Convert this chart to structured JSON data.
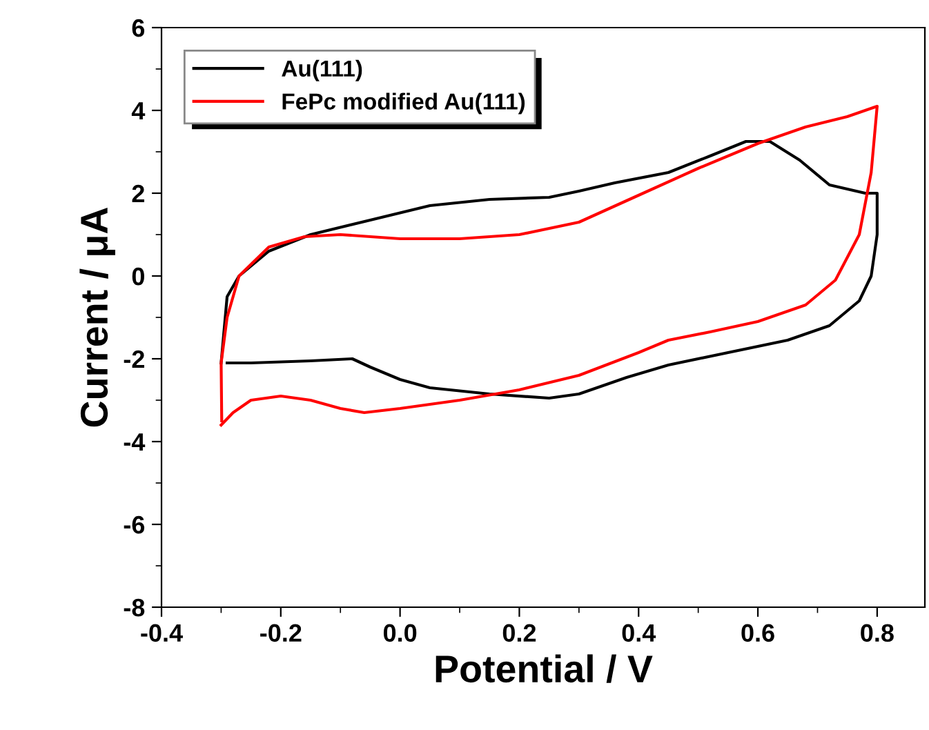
{
  "chart_data": {
    "type": "line",
    "xlabel": "Potential / V",
    "ylabel": "Current / μA",
    "xlim": [
      -0.4,
      0.88
    ],
    "ylim": [
      -8,
      6
    ],
    "xticks": [
      -0.4,
      -0.2,
      {
        "value": 0,
        "label": "0.0"
      },
      0.2,
      0.4,
      0.6,
      0.8
    ],
    "yticks": [
      -8,
      -6,
      -4,
      -2,
      0,
      2,
      4,
      6
    ],
    "grid": false,
    "legend": "top left",
    "marker": "none",
    "line_style": "solid",
    "series": [
      {
        "name": "Au(111)",
        "color": "#000000",
        "x": [
          -0.3,
          -0.29,
          -0.27,
          -0.22,
          -0.15,
          -0.05,
          0.05,
          0.15,
          0.25,
          0.3,
          0.36,
          0.45,
          0.52,
          0.58,
          0.62,
          0.67,
          0.72,
          0.78,
          0.8,
          0.8,
          0.79,
          0.77,
          0.72,
          0.65,
          0.55,
          0.45,
          0.38,
          0.3,
          0.25,
          0.15,
          0.05,
          0.0,
          -0.05,
          -0.08,
          -0.15,
          -0.25,
          -0.29
        ],
        "values": [
          -2.1,
          -0.5,
          0.0,
          0.6,
          1.0,
          1.35,
          1.7,
          1.85,
          1.9,
          2.05,
          2.25,
          2.5,
          2.9,
          3.25,
          3.25,
          2.8,
          2.2,
          2.0,
          2.0,
          1.0,
          0.0,
          -0.6,
          -1.2,
          -1.55,
          -1.85,
          -2.15,
          -2.45,
          -2.85,
          -2.95,
          -2.85,
          -2.7,
          -2.5,
          -2.2,
          -2.0,
          -2.05,
          -2.1,
          -2.1
        ]
      },
      {
        "name": "FePc modified Au(111)",
        "color": "#ff0000",
        "x": [
          -0.3,
          -0.28,
          -0.25,
          -0.2,
          -0.15,
          -0.1,
          -0.06,
          0.0,
          0.1,
          0.2,
          0.3,
          0.4,
          0.45,
          0.52,
          0.6,
          0.68,
          0.73,
          0.77,
          0.79,
          0.8,
          0.75,
          0.68,
          0.6,
          0.5,
          0.4,
          0.3,
          0.2,
          0.1,
          0.0,
          -0.1,
          -0.16,
          -0.22,
          -0.27,
          -0.29,
          -0.3,
          -0.299
        ],
        "values": [
          -3.6,
          -3.3,
          -3.0,
          -2.9,
          -3.0,
          -3.2,
          -3.3,
          -3.2,
          -3.0,
          -2.75,
          -2.4,
          -1.85,
          -1.55,
          -1.35,
          -1.1,
          -0.7,
          -0.1,
          1.0,
          2.5,
          4.1,
          3.85,
          3.6,
          3.2,
          2.6,
          1.95,
          1.3,
          1.0,
          0.9,
          0.9,
          1.0,
          0.95,
          0.7,
          0.0,
          -1.0,
          -2.1,
          -3.5
        ]
      }
    ]
  }
}
